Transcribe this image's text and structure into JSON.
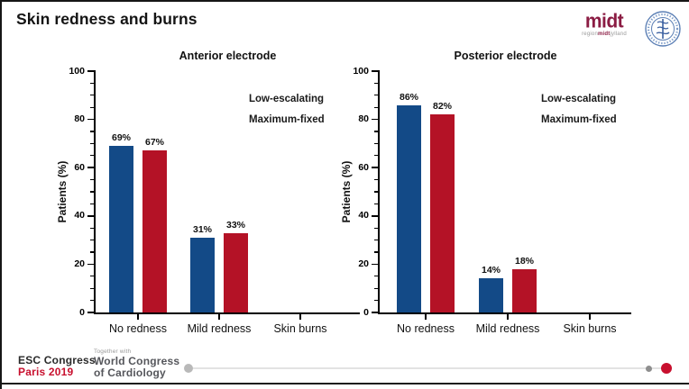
{
  "header": {
    "title": "Skin redness and burns"
  },
  "logos": {
    "midt": {
      "wordmark": "midt",
      "subtext_prefix": "region",
      "subtext_bold": "midt",
      "subtext_suffix": "jylland",
      "brand_color": "#8b1c43"
    },
    "seal": {
      "name": "hospital-seal",
      "color": "#4a6fae"
    }
  },
  "chart_data": [
    {
      "type": "bar",
      "title": "Anterior electrode",
      "ylabel": "Patients (%)",
      "ylim": [
        0,
        100
      ],
      "yticks": [
        0,
        20,
        40,
        60,
        80,
        100
      ],
      "minor_tick_interval": 5,
      "grid": false,
      "legend_position": "top-right",
      "categories": [
        "No redness",
        "Mild redness",
        "Skin burns"
      ],
      "series": [
        {
          "name": "Low-escalating",
          "color": "#134a87",
          "values": [
            69,
            31,
            0
          ]
        },
        {
          "name": "Maximum-fixed",
          "color": "#b41226",
          "values": [
            67,
            33,
            0
          ]
        }
      ],
      "value_label_suffix": "%"
    },
    {
      "type": "bar",
      "title": "Posterior electrode",
      "ylabel": "Patients (%)",
      "ylim": [
        0,
        100
      ],
      "yticks": [
        0,
        20,
        40,
        60,
        80,
        100
      ],
      "minor_tick_interval": 5,
      "grid": false,
      "legend_position": "top-right",
      "categories": [
        "No redness",
        "Mild redness",
        "Skin burns"
      ],
      "series": [
        {
          "name": "Low-escalating",
          "color": "#134a87",
          "values": [
            86,
            14,
            0
          ]
        },
        {
          "name": "Maximum-fixed",
          "color": "#b41226",
          "values": [
            82,
            18,
            0
          ]
        }
      ],
      "value_label_suffix": "%"
    }
  ],
  "footer": {
    "congress_line1": "ESC Congress",
    "congress_line2": "Paris 2019",
    "together_with": "Together with",
    "wcc_line1": "World Congress",
    "wcc_line2": "of Cardiology",
    "accent_color": "#c8102e"
  }
}
